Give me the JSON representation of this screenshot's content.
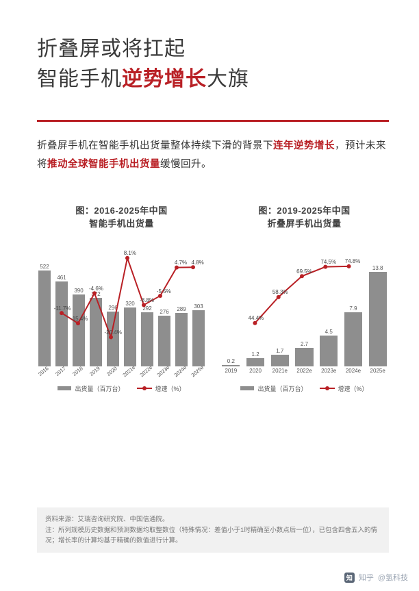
{
  "title": {
    "line1": "折叠屏或将扛起",
    "line2_pre": "智能手机",
    "line2_em": "逆势增长",
    "line2_post": "大旗"
  },
  "lede": {
    "t1": "折叠屏手机在智能手机出货量整体持续下滑的背景下",
    "em1": "连年逆势增长",
    "t2": "，预计未来将",
    "em2": "推动全球智能手机出货量",
    "t3": "缓慢回升。"
  },
  "chart1": {
    "type": "bar-line",
    "title_l1": "图：2016-2025年中国",
    "title_l2": "智能手机出货量",
    "categories": [
      "2016",
      "2017",
      "2018",
      "2019",
      "2020",
      "2021e",
      "2022e",
      "2023e",
      "2024e",
      "2025e"
    ],
    "bar_values": [
      522,
      461,
      390,
      372,
      296,
      320,
      292,
      276,
      289,
      303
    ],
    "bar_max": 560,
    "bar_color": "#8e8e8e",
    "line_pct": [
      null,
      -11.7,
      -15.4,
      -4.6,
      -20.4,
      8.1,
      -8.8,
      -5.5,
      4.7,
      4.8
    ],
    "line_color": "#b92025",
    "legend_bar": "出货量（百万台）",
    "legend_line": "增速（%）"
  },
  "chart2": {
    "type": "bar-line",
    "title_l1": "图：2019-2025年中国",
    "title_l2": "折叠屏手机出货量",
    "categories": [
      "2019",
      "2020",
      "2021e",
      "2022e",
      "2023e",
      "2024e",
      "2025e"
    ],
    "bar_values": [
      0.2,
      1.2,
      1.7,
      2.7,
      4.5,
      7.9,
      13.8
    ],
    "bar_max": 15,
    "bar_color": "#8e8e8e",
    "line_pct": [
      null,
      44.4,
      58.3,
      69.5,
      74.5,
      74.8,
      null
    ],
    "line_color": "#b92025",
    "legend_bar": "出货量（百万台）",
    "legend_line": "增速（%）"
  },
  "footer": {
    "source": "资料来源：艾瑞咨询研究院、中国信通院。",
    "note": "注：所列规模历史数据和预测数据均取整数位（特殊情况：差值小于1时精确至小数点后一位），已包含四舍五入的情况；增长率的计算均基于精确的数值进行计算。"
  },
  "watermark": {
    "logo_text": "知",
    "label": "知乎",
    "author": "@氢科技"
  },
  "colors": {
    "accent": "#b92025",
    "bar": "#8e8e8e",
    "text": "#3a3a3a",
    "bg": "#ffffff",
    "footer_bg": "#f1f1f1"
  }
}
